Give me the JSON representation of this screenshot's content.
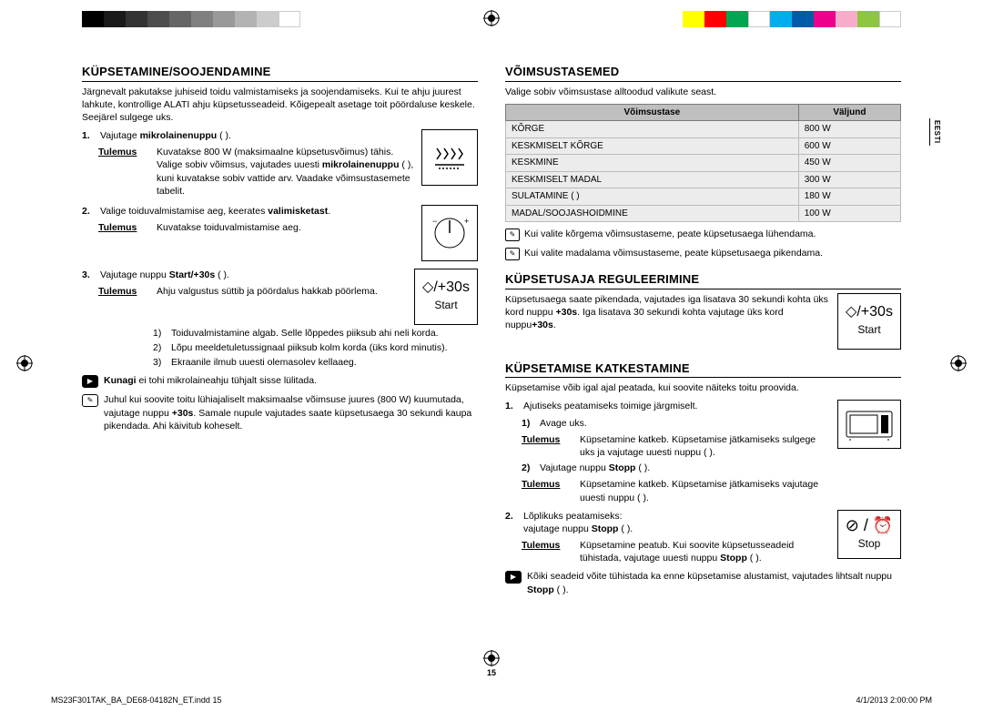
{
  "colorbars": {
    "left": [
      "#000000",
      "#1a1a1a",
      "#333333",
      "#4d4d4d",
      "#666666",
      "#808080",
      "#999999",
      "#b3b3b3",
      "#cccccc",
      "#ffffff"
    ],
    "right": [
      "#ffff00",
      "#ff0000",
      "#00a651",
      "#ffffff",
      "#00aeef",
      "#005bab",
      "#ec008c",
      "#f7adc9",
      "#8dc63f",
      "#ffffff"
    ]
  },
  "side_tab": "EESTI",
  "page_num": "15",
  "footer": {
    "left": "MS23F301TAK_BA_DE68-04182N_ET.indd   15",
    "right": "4/1/2013   2:00:00 PM"
  },
  "left_col": {
    "heading1": "KÜPSETAMINE/SOOJENDAMINE",
    "intro1": "Järgnevalt pakutakse juhiseid toidu valmistamiseks ja soojendamiseks. Kui te ahju juurest lahkute, kontrollige ALATI ahju küpsetusseadeid. Kõigepealt asetage toit pöördaluse keskele. Seejärel sulgege uks.",
    "step1_num": "1.",
    "step1_textA": "Vajutage ",
    "step1_bold": "mikrolainenuppu",
    "step1_textB": " (    ).",
    "step1_result_label": "Tulemus",
    "step1_result_textA": "Kuvatakse 800 W (maksimaalne küpsetusvõimus) tähis.",
    "step1_result_textB": "Valige sobiv võimsus, vajutades uuesti ",
    "step1_result_bold": "mikrolainenuppu",
    "step1_result_textC": " (    ), kuni kuvatakse sobiv vattide arv. Vaadake võimsustasemete tabelit.",
    "step2_num": "2.",
    "step2_textA": "Valige toiduvalmistamise aeg, keerates ",
    "step2_bold": "valimisketast",
    "step2_textB": ".",
    "step2_result_label": "Tulemus",
    "step2_result_text": "Kuvatakse toiduvalmistamise aeg.",
    "step3_num": "3.",
    "step3_textA": "Vajutage nuppu ",
    "step3_bold": "Start/+30s",
    "step3_textB": " (    ).",
    "step3_result_label": "Tulemus",
    "step3_result_text": "Ahju valgustus süttib ja pöördalus hakkab pöörlema.",
    "step3_sub1_num": "1)",
    "step3_sub1_text": "Toiduvalmistamine algab. Selle lõppedes piiksub ahi neli korda.",
    "step3_sub2_num": "2)",
    "step3_sub2_text": "Lõpu meeldetuletussignaal piiksub kolm korda (üks kord minutis).",
    "step3_sub3_num": "3)",
    "step3_sub3_text": "Ekraanile ilmub uuesti olemasolev kellaaeg.",
    "note1_icon": "▶",
    "note1_boldA": "Kunagi",
    "note1_text": " ei tohi mikrolaineahju tühjalt sisse lülitada.",
    "note2_icon": "✎",
    "note2_textA": "Juhul kui soovite toitu lühiajaliselt maksimaalse võimsuse juures (800 W) kuumutada, vajutage nuppu ",
    "note2_bold": "+30s",
    "note2_textB": ". Samale nupule vajutades saate küpsetusaega 30 sekundi kaupa pikendada. Ahi käivitub koheselt.",
    "icon_start_text": "+30s",
    "icon_start_label": "Start"
  },
  "right_col": {
    "heading1": "VÕIMSUSTASEMED",
    "intro1": "Valige sobiv võimsustase alltoodud valikute seast.",
    "table": {
      "headers": [
        "Võimsustase",
        "Väljund"
      ],
      "rows": [
        [
          "KÕRGE",
          "800 W"
        ],
        [
          "KESKMISELT KÕRGE",
          "600 W"
        ],
        [
          "KESKMINE",
          "450 W"
        ],
        [
          "KESKMISELT MADAL",
          "300 W"
        ],
        [
          "SULATAMINE (    )",
          "180 W"
        ],
        [
          "MADAL/SOOJASHOIDMINE",
          "100 W"
        ]
      ]
    },
    "note3_icon": "✎",
    "note3_text": "Kui valite kõrgema võimsustaseme, peate küpsetusaega lühendama.",
    "note4_icon": "✎",
    "note4_text": "Kui valite madalama võimsustaseme, peate küpsetusaega pikendama.",
    "heading2": "KÜPSETUSAJA REGULEERIMINE",
    "intro2A": "Küpsetusaega saate pikendada, vajutades iga lisatava 30 sekundi kohta üks kord nuppu ",
    "intro2_bold1": "+30s",
    "intro2B": ". Iga lisatava 30 sekundi kohta vajutage üks kord nuppu",
    "intro2_bold2": "+30s",
    "intro2C": ".",
    "icon2_start_text": "+30s",
    "icon2_start_label": "Start",
    "heading3": "KÜPSETAMISE KATKESTAMINE",
    "intro3": "Küpsetamise võib igal ajal peatada, kui soovite näiteks toitu proovida.",
    "s1_num": "1.",
    "s1_text": "Ajutiseks peatamiseks toimige järgmiselt.",
    "s1_1_num": "1)",
    "s1_1_text": "Avage uks.",
    "s1_1_res_label": "Tulemus",
    "s1_1_res_text": "Küpsetamine katkeb. Küpsetamise jätkamiseks sulgege uks ja vajutage uuesti nuppu (    ).",
    "s1_2_num": "2)",
    "s1_2_textA": "Vajutage nuppu ",
    "s1_2_bold": "Stopp",
    "s1_2_textB": " (    ).",
    "s1_2_res_label": "Tulemus",
    "s1_2_res_text": "Küpsetamine katkeb. Küpsetamise jätkamiseks vajutage uuesti nuppu (    ).",
    "s2_num": "2.",
    "s2_textA": "Lõplikuks peatamiseks:",
    "s2_textB": "vajutage nuppu ",
    "s2_bold": "Stopp",
    "s2_textC": " (    ).",
    "s2_res_label": "Tulemus",
    "s2_res_textA": "Küpsetamine peatub. Kui soovite küpsetusseadeid tühistada, vajutage uuesti nuppu ",
    "s2_res_bold": "Stopp",
    "s2_res_textB": " (    ).",
    "note5_icon": "▶",
    "note5_textA": "Kõiki seadeid võite tühistada ka enne küpsetamise alustamist, vajutades lihtsalt nuppu ",
    "note5_bold": "Stopp",
    "note5_textB": " (    ).",
    "icon_stop_label": "Stop"
  }
}
